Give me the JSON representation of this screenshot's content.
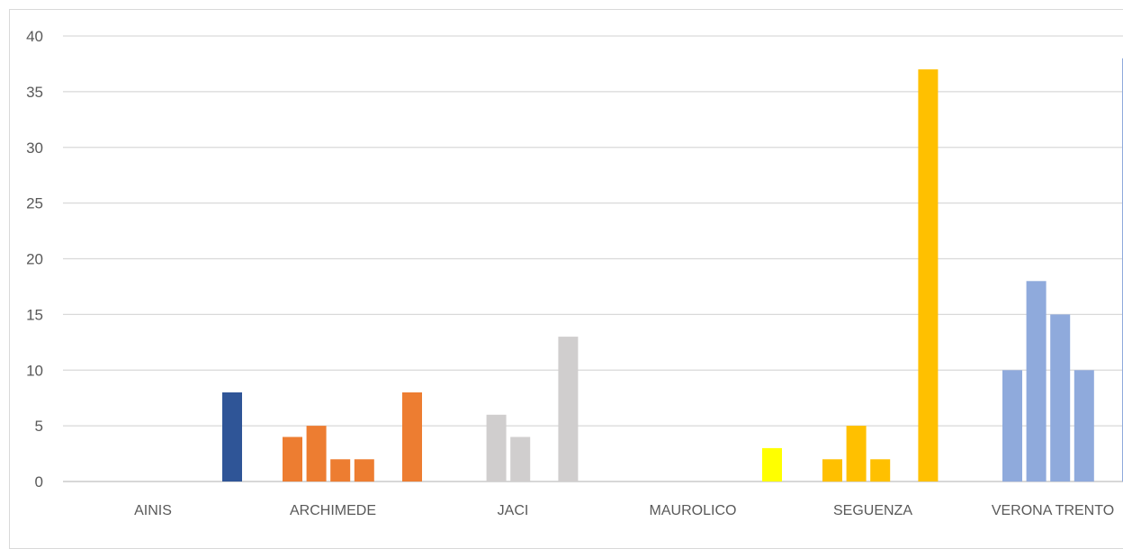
{
  "chart_data": {
    "type": "bar",
    "title": "",
    "xlabel": "",
    "ylabel": "",
    "ylim": [
      0,
      40
    ],
    "yticks": [
      0,
      5,
      10,
      15,
      20,
      25,
      30,
      35,
      40
    ],
    "grid": true,
    "legend": "none",
    "categories": [
      "AINIS",
      "ARCHIMEDE",
      "JACI",
      "MAUROLICO",
      "SEGUENZA",
      "VERONA TRENTO"
    ],
    "groups": [
      {
        "category": "AINIS",
        "color": "#2F5597",
        "values": [
          0,
          0,
          0,
          0,
          0,
          8
        ]
      },
      {
        "category": "ARCHIMEDE",
        "color": "#ED7D31",
        "values": [
          4,
          5,
          2,
          2,
          0,
          8
        ]
      },
      {
        "category": "JACI",
        "color": "#D0CECE",
        "values": [
          0,
          6,
          4,
          0,
          13,
          0
        ]
      },
      {
        "category": "MAUROLICO",
        "color": "#FFFF00",
        "values": [
          0,
          0,
          0,
          0,
          0,
          3
        ]
      },
      {
        "category": "SEGUENZA",
        "color": "#FFC000",
        "values": [
          2,
          5,
          2,
          0,
          37,
          0
        ]
      },
      {
        "category": "VERONA TRENTO",
        "color": "#8FAADC",
        "values": [
          10,
          18,
          15,
          10,
          0,
          38
        ]
      }
    ]
  }
}
